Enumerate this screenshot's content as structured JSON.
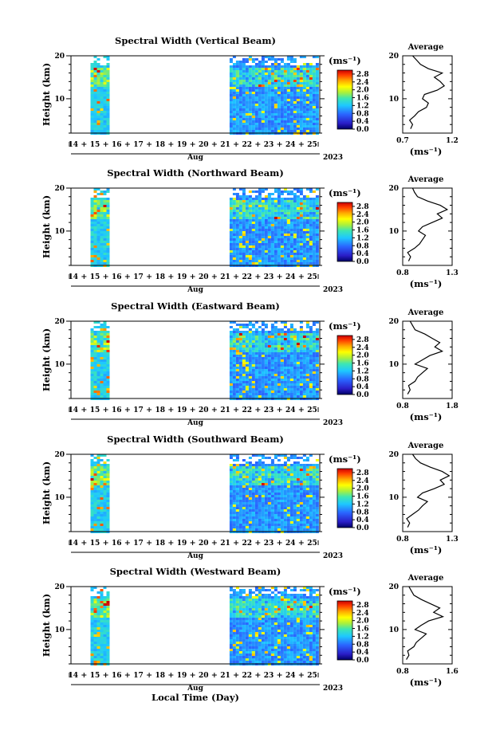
{
  "figure": {
    "xlabel": "Local Time (Day)",
    "year": "2023",
    "month": "Aug"
  },
  "chart_data": [
    {
      "type": "heatmap",
      "title": "Spectral Width (Vertical Beam)",
      "ylabel": "Height (km)",
      "ylim": [
        2,
        20
      ],
      "yticks": [
        10,
        20
      ],
      "x": [
        "14",
        "15",
        "16",
        "17",
        "18",
        "19",
        "20",
        "21",
        "22",
        "23",
        "24",
        "25"
      ],
      "xlabel": "Aug",
      "colorbar": {
        "label": "(ms⁻¹)",
        "ticks": [
          "0.0",
          "0.4",
          "0.8",
          "1.2",
          "1.6",
          "2.0",
          "2.4",
          "2.8"
        ],
        "range": [
          0,
          3.0
        ]
      },
      "gap_days": [
        15.6,
        21.2
      ],
      "average": {
        "title": "Average",
        "xlabel": "(ms⁻¹)",
        "xticks": [
          "0.7",
          "1.2"
        ],
        "xlim": [
          0.7,
          1.2
        ],
        "ylim": [
          2,
          20
        ],
        "yticks": [
          10,
          20
        ],
        "height": [
          3,
          4,
          5,
          6,
          7,
          8,
          9,
          10,
          11,
          12,
          13,
          14,
          15,
          16,
          17,
          18,
          19,
          20
        ],
        "values": [
          0.78,
          0.8,
          0.77,
          0.82,
          0.86,
          0.94,
          0.96,
          0.9,
          0.92,
          1.05,
          1.12,
          1.08,
          1.02,
          1.1,
          0.96,
          0.88,
          0.84,
          0.8
        ]
      }
    },
    {
      "type": "heatmap",
      "title": "Spectral Width (Northward Beam)",
      "ylabel": "Height (km)",
      "ylim": [
        2,
        20
      ],
      "yticks": [
        10,
        20
      ],
      "x": [
        "14",
        "15",
        "16",
        "17",
        "18",
        "19",
        "20",
        "21",
        "22",
        "23",
        "24",
        "25"
      ],
      "xlabel": "Aug",
      "colorbar": {
        "label": "(ms⁻¹)",
        "ticks": [
          "0.0",
          "0.4",
          "0.8",
          "1.2",
          "1.6",
          "2.0",
          "2.4",
          "2.8"
        ],
        "range": [
          0,
          3.0
        ]
      },
      "gap_days": [
        15.6,
        21.2
      ],
      "average": {
        "title": "Average",
        "xlabel": "(ms⁻¹)",
        "xticks": [
          "0.8",
          "1.3"
        ],
        "xlim": [
          0.8,
          1.3
        ],
        "ylim": [
          2,
          20
        ],
        "yticks": [
          10,
          20
        ],
        "height": [
          3,
          4,
          5,
          6,
          7,
          8,
          9,
          10,
          11,
          12,
          13,
          14,
          15,
          16,
          17,
          18,
          19,
          20
        ],
        "values": [
          0.86,
          0.88,
          0.85,
          0.92,
          0.97,
          1.0,
          1.03,
          0.96,
          1.0,
          1.1,
          1.2,
          1.15,
          1.25,
          1.18,
          1.05,
          0.95,
          0.92,
          0.9
        ]
      }
    },
    {
      "type": "heatmap",
      "title": "Spectral Width (Eastward Beam)",
      "ylabel": "Height (km)",
      "ylim": [
        2,
        20
      ],
      "yticks": [
        10,
        20
      ],
      "x": [
        "14",
        "15",
        "16",
        "17",
        "18",
        "19",
        "20",
        "21",
        "22",
        "23",
        "24",
        "25"
      ],
      "xlabel": "Aug",
      "colorbar": {
        "label": "(ms⁻¹)",
        "ticks": [
          "0.0",
          "0.4",
          "0.8",
          "1.2",
          "1.6",
          "2.0",
          "2.4",
          "2.8"
        ],
        "range": [
          0,
          3.0
        ]
      },
      "gap_days": [
        15.6,
        21.2
      ],
      "average": {
        "title": "Average",
        "xlabel": "(ms⁻¹)",
        "xticks": [
          "0.8",
          "1.8"
        ],
        "xlim": [
          0.8,
          1.8
        ],
        "ylim": [
          2,
          20
        ],
        "yticks": [
          10,
          20
        ],
        "height": [
          3,
          4,
          5,
          6,
          7,
          8,
          9,
          10,
          11,
          12,
          13,
          14,
          15,
          16,
          17,
          18,
          19,
          20
        ],
        "values": [
          0.9,
          0.95,
          0.92,
          1.05,
          1.1,
          1.2,
          1.3,
          1.05,
          1.2,
          1.35,
          1.6,
          1.45,
          1.55,
          1.4,
          1.25,
          1.05,
          1.0,
          0.95
        ]
      }
    },
    {
      "type": "heatmap",
      "title": "Spectral Width (Southward Beam)",
      "ylabel": "Height (km)",
      "ylim": [
        2,
        20
      ],
      "yticks": [
        10,
        20
      ],
      "x": [
        "14",
        "15",
        "16",
        "17",
        "18",
        "19",
        "20",
        "21",
        "22",
        "23",
        "24",
        "25"
      ],
      "xlabel": "Aug",
      "colorbar": {
        "label": "(ms⁻¹)",
        "ticks": [
          "0.0",
          "0.4",
          "0.8",
          "1.2",
          "1.6",
          "2.0",
          "2.4",
          "2.8"
        ],
        "range": [
          0,
          3.0
        ]
      },
      "gap_days": [
        15.6,
        21.2
      ],
      "average": {
        "title": "Average",
        "xlabel": "(ms⁻¹)",
        "xticks": [
          "0.8",
          "1.3"
        ],
        "xlim": [
          0.8,
          1.3
        ],
        "ylim": [
          2,
          20
        ],
        "yticks": [
          10,
          20
        ],
        "height": [
          3,
          4,
          5,
          6,
          7,
          8,
          9,
          10,
          11,
          12,
          13,
          14,
          15,
          16,
          17,
          18,
          19,
          20
        ],
        "values": [
          0.85,
          0.87,
          0.84,
          0.9,
          0.96,
          1.0,
          1.05,
          0.95,
          1.0,
          1.12,
          1.22,
          1.18,
          1.27,
          1.2,
          1.08,
          0.98,
          0.93,
          0.9
        ]
      }
    },
    {
      "type": "heatmap",
      "title": "Spectral Width (Westward Beam)",
      "ylabel": "Height (km)",
      "ylim": [
        2,
        20
      ],
      "yticks": [
        10,
        20
      ],
      "x": [
        "14",
        "15",
        "16",
        "17",
        "18",
        "19",
        "20",
        "21",
        "22",
        "23",
        "24",
        "25"
      ],
      "xlabel": "Aug",
      "colorbar": {
        "label": "(ms⁻¹)",
        "ticks": [
          "0.0",
          "0.4",
          "0.8",
          "1.2",
          "1.6",
          "2.0",
          "2.4",
          "2.8"
        ],
        "range": [
          0,
          3.0
        ]
      },
      "gap_days": [
        15.6,
        21.2
      ],
      "average": {
        "title": "Average",
        "xlabel": "(ms⁻¹)",
        "xticks": [
          "0.8",
          "1.6"
        ],
        "xlim": [
          0.8,
          1.6
        ],
        "ylim": [
          2,
          20
        ],
        "yticks": [
          10,
          20
        ],
        "height": [
          3,
          4,
          5,
          6,
          7,
          8,
          9,
          10,
          11,
          12,
          13,
          14,
          15,
          16,
          17,
          18,
          19,
          20
        ],
        "values": [
          0.86,
          0.9,
          0.88,
          0.98,
          1.02,
          1.1,
          1.18,
          1.0,
          1.1,
          1.22,
          1.45,
          1.3,
          1.4,
          1.25,
          1.1,
          0.98,
          0.94,
          0.9
        ]
      }
    }
  ]
}
